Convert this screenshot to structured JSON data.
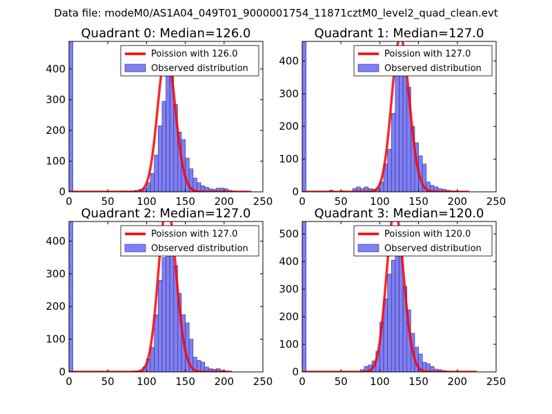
{
  "figure": {
    "suptitle": "Data file: modeM0/AS1A04_049T01_9000001754_11871cztM0_level2_quad_clean.evt"
  },
  "chart_data": [
    {
      "type": "bar+line",
      "title": "Quadrant 0: Median=126.0",
      "median": 126,
      "xlim": [
        0,
        250
      ],
      "ylim": [
        0,
        490
      ],
      "xticks": [
        0,
        50,
        100,
        150,
        200,
        250
      ],
      "yticks": [
        0,
        100,
        200,
        300,
        400
      ],
      "legend": {
        "position": "top-right",
        "line_label": "Poission with 126.0",
        "bar_label": "Observed distribution"
      },
      "poisson_range": [
        0,
        235
      ],
      "histogram": {
        "bin_width": 5,
        "bins": [
          [
            0,
            490
          ],
          [
            65,
            2
          ],
          [
            70,
            3
          ],
          [
            75,
            2
          ],
          [
            80,
            3
          ],
          [
            85,
            5
          ],
          [
            90,
            8
          ],
          [
            95,
            12
          ],
          [
            100,
            30
          ],
          [
            105,
            60
          ],
          [
            110,
            120
          ],
          [
            115,
            215
          ],
          [
            120,
            295
          ],
          [
            125,
            415
          ],
          [
            130,
            395
          ],
          [
            135,
            285
          ],
          [
            140,
            195
          ],
          [
            145,
            170
          ],
          [
            150,
            110
          ],
          [
            155,
            75
          ],
          [
            160,
            45
          ],
          [
            165,
            30
          ],
          [
            170,
            20
          ],
          [
            175,
            15
          ],
          [
            180,
            10
          ],
          [
            185,
            8
          ],
          [
            190,
            12
          ],
          [
            195,
            12
          ],
          [
            200,
            10
          ],
          [
            205,
            5
          ],
          [
            210,
            3
          ]
        ]
      }
    },
    {
      "type": "bar+line",
      "title": "Quadrant 1: Median=127.0",
      "median": 127,
      "xlim": [
        0,
        250
      ],
      "ylim": [
        0,
        460
      ],
      "xticks": [
        0,
        50,
        100,
        150,
        200,
        250
      ],
      "yticks": [
        0,
        100,
        200,
        300,
        400
      ],
      "legend": {
        "position": "top-right",
        "line_label": "Poission with 127.0",
        "bar_label": "Observed distribution"
      },
      "poisson_range": [
        0,
        215
      ],
      "histogram": {
        "bin_width": 5,
        "bins": [
          [
            0,
            460
          ],
          [
            35,
            5
          ],
          [
            50,
            3
          ],
          [
            65,
            10
          ],
          [
            70,
            15
          ],
          [
            75,
            10
          ],
          [
            80,
            15
          ],
          [
            85,
            10
          ],
          [
            90,
            8
          ],
          [
            95,
            12
          ],
          [
            100,
            30
          ],
          [
            105,
            85
          ],
          [
            110,
            130
          ],
          [
            115,
            240
          ],
          [
            120,
            355
          ],
          [
            125,
            380
          ],
          [
            130,
            410
          ],
          [
            135,
            320
          ],
          [
            140,
            200
          ],
          [
            145,
            150
          ],
          [
            150,
            110
          ],
          [
            155,
            85
          ],
          [
            160,
            30
          ],
          [
            165,
            20
          ],
          [
            170,
            15
          ],
          [
            175,
            10
          ],
          [
            180,
            8
          ],
          [
            185,
            5
          ],
          [
            190,
            3
          ],
          [
            195,
            2
          ]
        ]
      }
    },
    {
      "type": "bar+line",
      "title": "Quadrant 2: Median=127.0",
      "median": 127,
      "xlim": [
        0,
        250
      ],
      "ylim": [
        0,
        460
      ],
      "xticks": [
        0,
        50,
        100,
        150,
        200,
        250
      ],
      "yticks": [
        0,
        100,
        200,
        300,
        400
      ],
      "legend": {
        "position": "top-right",
        "line_label": "Poission with 127.0",
        "bar_label": "Observed distribution"
      },
      "poisson_range": [
        0,
        210
      ],
      "histogram": {
        "bin_width": 5,
        "bins": [
          [
            0,
            460
          ],
          [
            80,
            2
          ],
          [
            85,
            3
          ],
          [
            90,
            5
          ],
          [
            95,
            15
          ],
          [
            100,
            40
          ],
          [
            105,
            75
          ],
          [
            110,
            175
          ],
          [
            115,
            280
          ],
          [
            120,
            350
          ],
          [
            125,
            420
          ],
          [
            130,
            380
          ],
          [
            135,
            325
          ],
          [
            140,
            240
          ],
          [
            145,
            175
          ],
          [
            150,
            150
          ],
          [
            155,
            100
          ],
          [
            160,
            45
          ],
          [
            165,
            35
          ],
          [
            170,
            30
          ],
          [
            175,
            15
          ],
          [
            180,
            10
          ],
          [
            185,
            8
          ],
          [
            190,
            10
          ],
          [
            195,
            5
          ],
          [
            200,
            3
          ]
        ]
      }
    },
    {
      "type": "bar+line",
      "title": "Quadrant 3: Median=120.0",
      "median": 120,
      "xlim": [
        0,
        250
      ],
      "ylim": [
        0,
        545
      ],
      "xticks": [
        0,
        50,
        100,
        150,
        200,
        250
      ],
      "yticks": [
        0,
        100,
        200,
        300,
        400,
        500
      ],
      "legend": {
        "position": "top-right",
        "line_label": "Poission with 120.0",
        "bar_label": "Observed distribution"
      },
      "poisson_range": [
        0,
        225
      ],
      "histogram": {
        "bin_width": 5,
        "bins": [
          [
            0,
            545
          ],
          [
            75,
            8
          ],
          [
            80,
            20
          ],
          [
            85,
            25
          ],
          [
            90,
            40
          ],
          [
            95,
            75
          ],
          [
            100,
            180
          ],
          [
            105,
            265
          ],
          [
            110,
            355
          ],
          [
            115,
            405
          ],
          [
            120,
            475
          ],
          [
            125,
            430
          ],
          [
            130,
            310
          ],
          [
            135,
            225
          ],
          [
            140,
            140
          ],
          [
            145,
            90
          ],
          [
            150,
            65
          ],
          [
            155,
            35
          ],
          [
            160,
            30
          ],
          [
            165,
            20
          ],
          [
            170,
            10
          ],
          [
            175,
            8
          ],
          [
            180,
            5
          ],
          [
            185,
            3
          ],
          [
            190,
            2
          ],
          [
            200,
            2
          ],
          [
            205,
            1
          ]
        ]
      }
    }
  ]
}
